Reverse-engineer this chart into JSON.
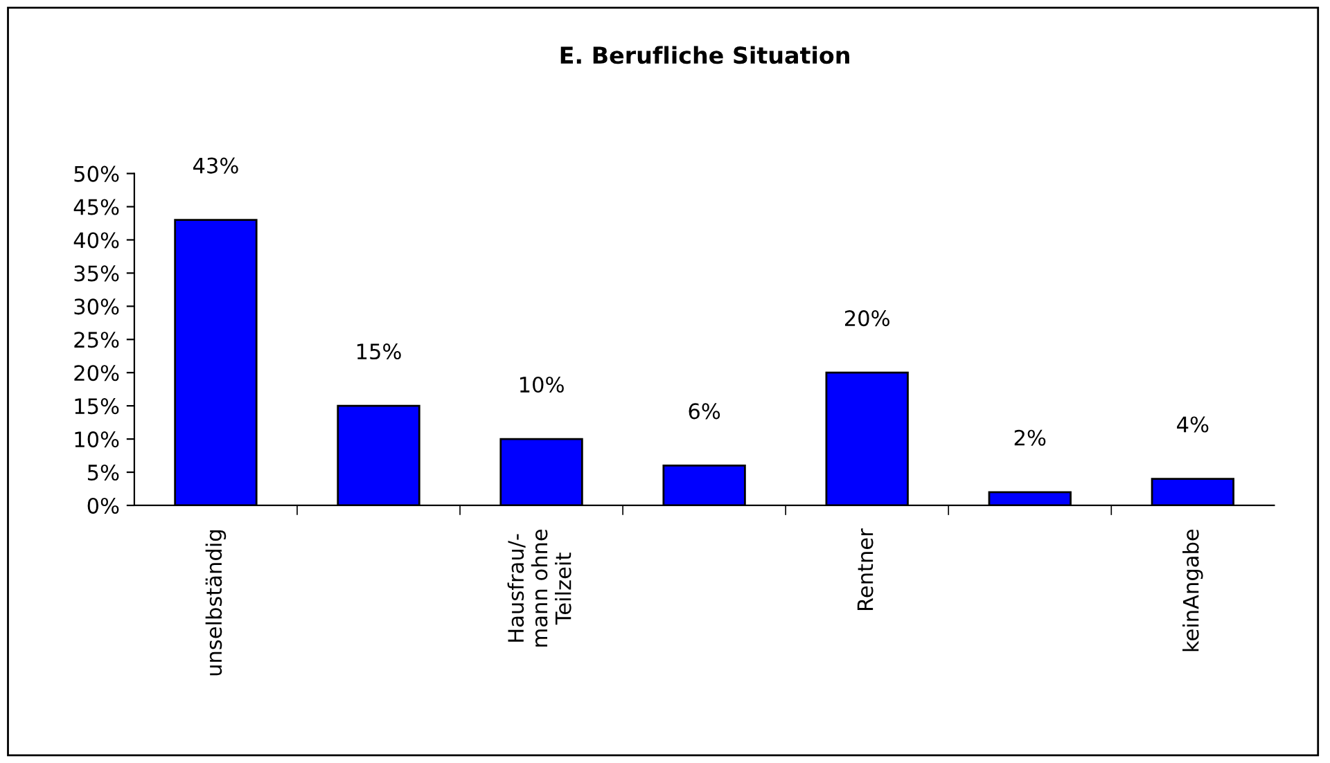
{
  "chart_data": {
    "type": "bar",
    "title": "E. Berufliche Situation",
    "categories": [
      "unselbständig",
      null,
      "Hausfrau/-\nmann ohne\nTeilzeit",
      null,
      "Rentner",
      null,
      "keinAngabe"
    ],
    "values": [
      43,
      15,
      10,
      6,
      20,
      2,
      4
    ],
    "color": "#0000ff",
    "ylim": [
      0,
      50
    ],
    "yticks": [
      {
        "value": 0,
        "label": "0%"
      },
      {
        "value": 5,
        "label": "5%"
      },
      {
        "value": 10,
        "label": "10%"
      },
      {
        "value": 15,
        "label": "15%"
      },
      {
        "value": 20,
        "label": "20%"
      },
      {
        "value": 25,
        "label": "25%"
      },
      {
        "value": 30,
        "label": "30%"
      },
      {
        "value": 35,
        "label": "35%"
      },
      {
        "value": 40,
        "label": "40%"
      },
      {
        "value": 45,
        "label": "45%"
      },
      {
        "value": 50,
        "label": "50%"
      }
    ],
    "value_labels": [
      "43%",
      "15%",
      "10%",
      "6%",
      "20%",
      "2%",
      "4%"
    ],
    "grid": false,
    "legend": false
  }
}
